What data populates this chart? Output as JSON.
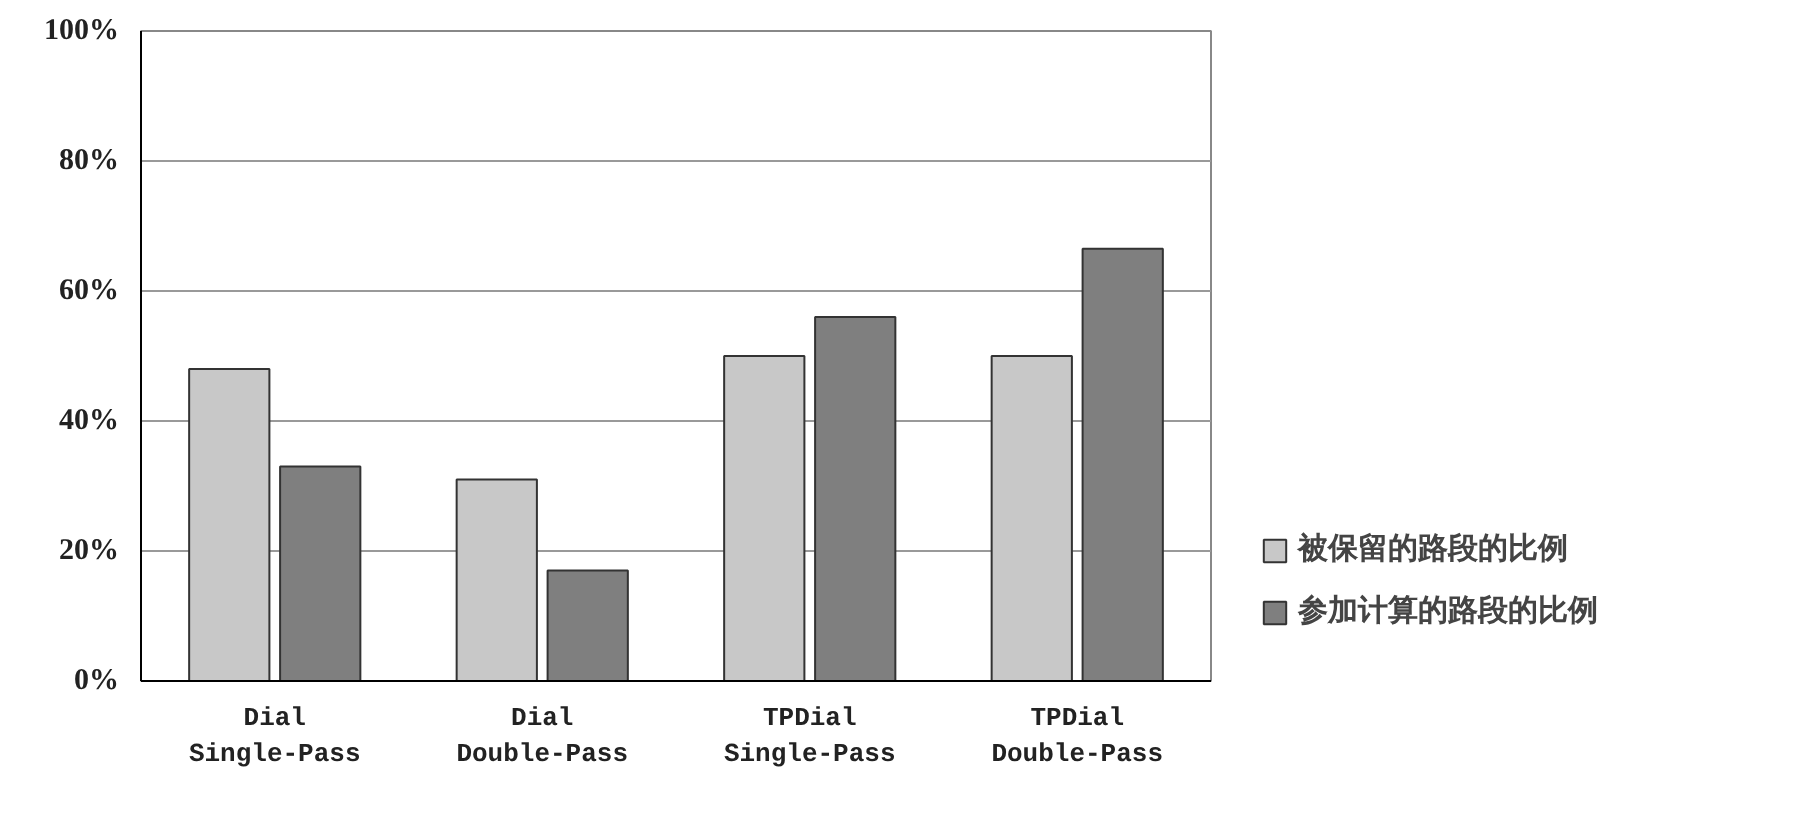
{
  "chart_data": {
    "type": "bar",
    "categories": [
      "Dial\nSingle-Pass",
      "Dial\nDouble-Pass",
      "TPDial\nSingle-Pass",
      "TPDial\nDouble-Pass"
    ],
    "series": [
      {
        "name": "被保留的路段的比例",
        "color": "#c8c8c8",
        "values": [
          48,
          31,
          50,
          50
        ]
      },
      {
        "name": "参加计算的路段的比例",
        "color": "#7f7f7f",
        "values": [
          33,
          17,
          56,
          66.5
        ]
      }
    ],
    "ylim": [
      0,
      100
    ],
    "yticks": [
      {
        "value": 0,
        "label": "0%"
      },
      {
        "value": 20,
        "label": "20%"
      },
      {
        "value": 40,
        "label": "40%"
      },
      {
        "value": 60,
        "label": "60%"
      },
      {
        "value": 80,
        "label": "80%"
      },
      {
        "value": 100,
        "label": "100%"
      }
    ],
    "grid": "y",
    "legend": "right"
  }
}
